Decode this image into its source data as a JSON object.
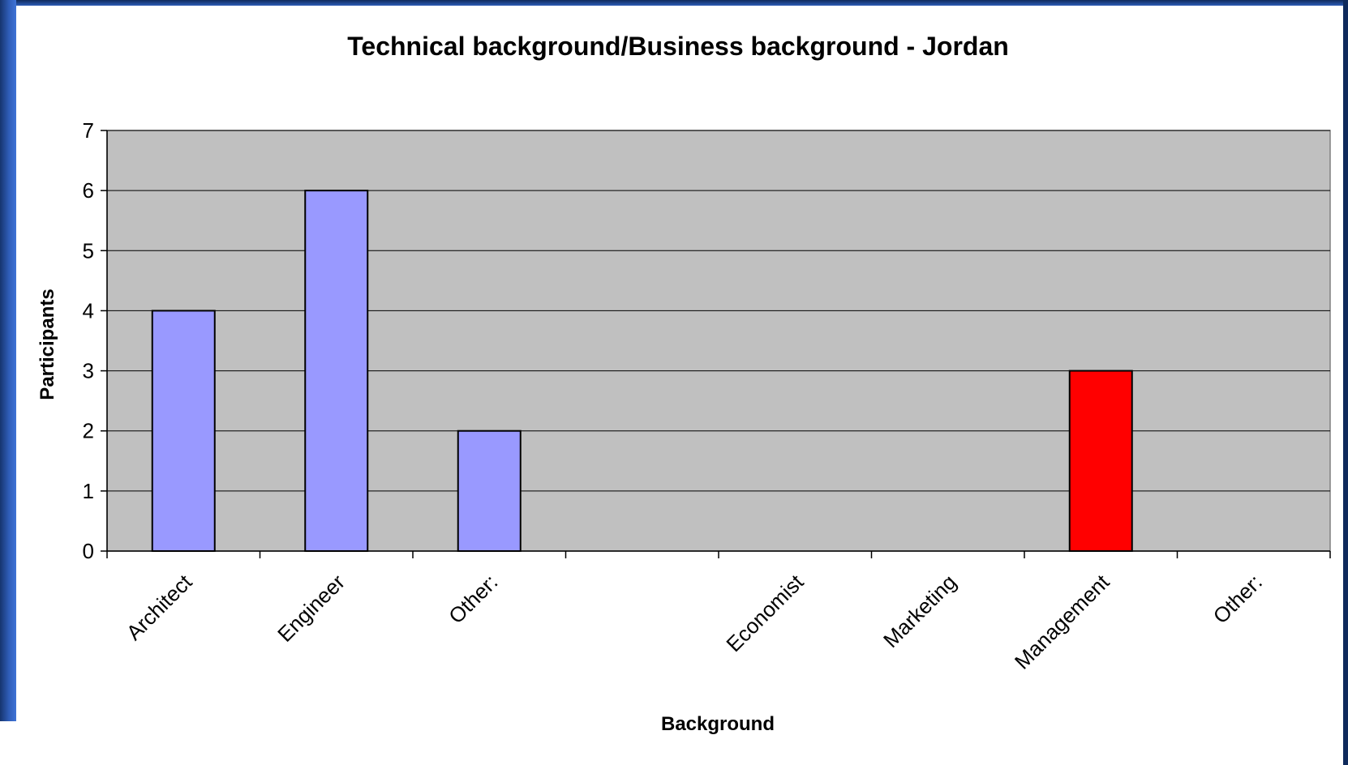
{
  "chart_data": {
    "type": "bar",
    "title": "Technical background/Business background - Jordan",
    "xlabel": "Background",
    "ylabel": "Participants",
    "categories": [
      "Architect",
      "Engineer",
      "Other:",
      "",
      "Economist",
      "Marketing",
      "Management",
      "Other:"
    ],
    "values": [
      4,
      6,
      2,
      0,
      0,
      0,
      3,
      0
    ],
    "bar_colors": [
      "#9999ff",
      "#9999ff",
      "#9999ff",
      "#9999ff",
      "#ff0000",
      "#ff0000",
      "#ff0000",
      "#ff0000"
    ],
    "ylim": [
      0,
      7
    ],
    "yticks": [
      "0",
      "1",
      "2",
      "3",
      "4",
      "5",
      "6",
      "7"
    ],
    "grid": true,
    "plot_background": "#c0c0c0",
    "legend": "none"
  }
}
